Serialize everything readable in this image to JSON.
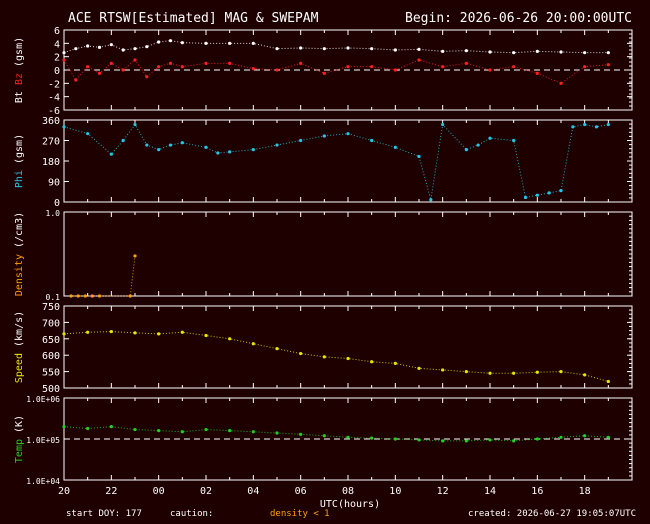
{
  "header": {
    "title": "ACE RTSW[Estimated] MAG & SWEPAM",
    "begin": "Begin: 2026-06-26 20:00:00UTC"
  },
  "footer": {
    "start_doy": "start DOY: 177",
    "caution_label": "caution:",
    "caution_note": "density < 1",
    "created": "created: 2026-06-27 19:05:07UTC"
  },
  "colors": {
    "background": "#1e0000",
    "axes": "#ffffff",
    "bt": "#ffffff",
    "bz": "#ff2020",
    "phi": "#22c8e6",
    "density": "#ffa000",
    "speed": "#e6e600",
    "temp": "#22d022",
    "zero_dashed": "#ffffff"
  },
  "chart_data": [
    {
      "type": "scatter",
      "panel": "mag",
      "ylabel_parts": [
        "Bt",
        "Bz",
        "(gsm)"
      ],
      "ylim": [
        -6,
        6
      ],
      "yticks": [
        "6",
        "4",
        "2",
        "0",
        "-2",
        "-4",
        "-6"
      ],
      "reference_line": 0,
      "series": [
        {
          "name": "Bt",
          "color": "#ffffff",
          "x": [
            0,
            0.5,
            1,
            1.5,
            2,
            2.5,
            3,
            3.5,
            4,
            4.5,
            5,
            6,
            7,
            8,
            9,
            10,
            11,
            12,
            13,
            14,
            15,
            16,
            17,
            18,
            19,
            20,
            21,
            22,
            23
          ],
          "y": [
            2.6,
            3.2,
            3.6,
            3.4,
            3.8,
            3.0,
            3.2,
            3.5,
            4.2,
            4.4,
            4.1,
            4.0,
            4.0,
            4.0,
            3.2,
            3.3,
            3.2,
            3.3,
            3.2,
            3.0,
            3.1,
            2.8,
            2.9,
            2.7,
            2.6,
            2.8,
            2.7,
            2.6,
            2.6
          ]
        },
        {
          "name": "Bz",
          "color": "#ff2020",
          "x": [
            0,
            0.5,
            1,
            1.5,
            2,
            2.5,
            3,
            3.5,
            4,
            4.5,
            5,
            6,
            7,
            8,
            9,
            10,
            11,
            12,
            13,
            14,
            15,
            16,
            17,
            18,
            19,
            20,
            21,
            22,
            23
          ],
          "y": [
            1.5,
            -1.5,
            0.5,
            -0.5,
            1.0,
            0.0,
            1.5,
            -1.0,
            0.5,
            1.0,
            0.5,
            1.0,
            1.0,
            0.2,
            0.0,
            1.0,
            -0.5,
            0.5,
            0.5,
            0.0,
            1.5,
            0.5,
            1.0,
            0.0,
            0.5,
            -0.5,
            -2.0,
            0.5,
            0.8
          ]
        }
      ]
    },
    {
      "type": "scatter",
      "panel": "phi",
      "ylabel_parts": [
        "Phi",
        "(gsm)"
      ],
      "ylim": [
        0,
        360
      ],
      "yticks": [
        "360",
        "270",
        "180",
        "90",
        "0"
      ],
      "series": [
        {
          "name": "Phi",
          "color": "#22c8e6",
          "x": [
            0,
            1,
            2,
            2.5,
            3,
            3.5,
            4,
            4.5,
            5,
            6,
            6.5,
            7,
            8,
            9,
            10,
            11,
            12,
            13,
            14,
            15,
            15.5,
            16,
            17,
            17.5,
            18,
            19,
            19.5,
            20,
            20.5,
            21,
            21.5,
            22,
            22.5,
            23
          ],
          "y": [
            330,
            300,
            210,
            270,
            340,
            250,
            230,
            250,
            260,
            240,
            215,
            220,
            230,
            250,
            270,
            290,
            300,
            270,
            240,
            200,
            10,
            340,
            230,
            250,
            280,
            270,
            20,
            30,
            40,
            50,
            330,
            340,
            330,
            340
          ]
        }
      ]
    },
    {
      "type": "scatter",
      "panel": "density",
      "ylabel_parts": [
        "Density",
        "(/cm3)"
      ],
      "ylim": [
        0.1,
        1.0
      ],
      "yscale": "log",
      "yticks": [
        "1.0",
        "0.1"
      ],
      "series": [
        {
          "name": "Density",
          "color": "#ffa000",
          "x": [
            0.3,
            0.6,
            0.9,
            1.2,
            1.5,
            2.8,
            3.0
          ],
          "y": [
            0.1,
            0.1,
            0.1,
            0.1,
            0.1,
            0.1,
            0.3
          ]
        }
      ]
    },
    {
      "type": "scatter",
      "panel": "speed",
      "ylabel_parts": [
        "Speed",
        "(km/s)"
      ],
      "ylim": [
        500,
        750
      ],
      "yticks": [
        "750",
        "700",
        "650",
        "600",
        "550",
        "500"
      ],
      "series": [
        {
          "name": "Speed",
          "color": "#e6e600",
          "x": [
            0,
            1,
            2,
            3,
            4,
            5,
            6,
            7,
            8,
            9,
            10,
            11,
            12,
            13,
            14,
            15,
            16,
            17,
            18,
            19,
            20,
            21,
            22,
            23
          ],
          "y": [
            665,
            670,
            672,
            668,
            665,
            670,
            660,
            650,
            635,
            620,
            605,
            595,
            590,
            580,
            575,
            560,
            555,
            550,
            545,
            545,
            548,
            550,
            540,
            520
          ]
        }
      ]
    },
    {
      "type": "scatter",
      "panel": "temp",
      "ylabel_parts": [
        "Temp",
        "(K)"
      ],
      "ylim": [
        10000,
        1000000
      ],
      "yscale": "log",
      "yticks": [
        "1.0E+06",
        "1.0E+05",
        "1.0E+04"
      ],
      "reference_line": 100000,
      "series": [
        {
          "name": "Temp",
          "color": "#22d022",
          "x": [
            0,
            1,
            2,
            3,
            4,
            5,
            6,
            7,
            8,
            9,
            10,
            11,
            12,
            13,
            14,
            15,
            16,
            17,
            18,
            19,
            20,
            21,
            22,
            23
          ],
          "y": [
            200000,
            180000,
            200000,
            170000,
            160000,
            150000,
            170000,
            160000,
            150000,
            140000,
            130000,
            120000,
            110000,
            105000,
            100000,
            95000,
            90000,
            90000,
            95000,
            90000,
            100000,
            110000,
            120000,
            110000
          ]
        }
      ]
    }
  ],
  "xaxis": {
    "label": "UTC(hours)",
    "tick_labels": [
      "20",
      "22",
      "00",
      "02",
      "04",
      "06",
      "08",
      "10",
      "12",
      "14",
      "16",
      "18"
    ],
    "range_hours": [
      0,
      24
    ]
  }
}
